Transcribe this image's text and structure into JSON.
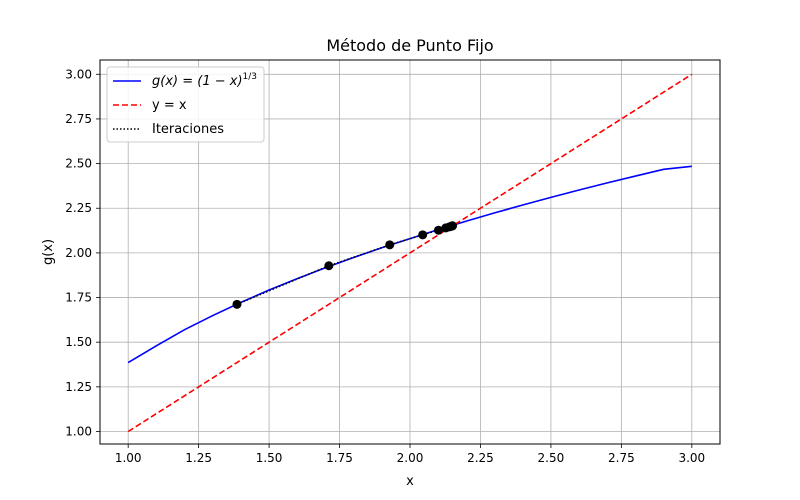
{
  "chart_data": {
    "type": "line",
    "title": "Método de Punto Fijo",
    "xlabel": "x",
    "ylabel": "g(x)",
    "xlim": [
      0.9,
      3.1
    ],
    "ylim": [
      0.93,
      3.08
    ],
    "x_ticks": [
      "1.00",
      "1.25",
      "1.50",
      "1.75",
      "2.00",
      "2.25",
      "2.50",
      "2.75",
      "3.00"
    ],
    "y_ticks": [
      "1.00",
      "1.25",
      "1.50",
      "1.75",
      "2.00",
      "2.25",
      "2.50",
      "2.75",
      "3.00"
    ],
    "grid": true,
    "legend_position": "top-left",
    "series": [
      {
        "name": "g(x) = (1 − x)^{1/3}",
        "legend_main": "g(x) = (1 − x)",
        "legend_sup": "1/3",
        "style": "solid",
        "color": "#0000ff",
        "x": [
          1.0,
          1.1,
          1.2,
          1.3,
          1.4,
          1.5,
          1.6,
          1.7,
          1.8,
          1.9,
          2.0,
          2.1,
          2.2,
          2.3,
          2.4,
          2.5,
          2.6,
          2.7,
          2.8,
          2.9,
          3.0
        ],
        "y": [
          1.386,
          1.48,
          1.57,
          1.649,
          1.723,
          1.792,
          1.856,
          1.917,
          1.974,
          2.029,
          2.08,
          2.13,
          2.178,
          2.224,
          2.268,
          2.311,
          2.352,
          2.392,
          2.43,
          2.468,
          2.485
        ]
      },
      {
        "name": "y = x",
        "legend_main": "y = x",
        "style": "dashed",
        "color": "#ff0000",
        "x": [
          1.0,
          3.0
        ],
        "y": [
          1.0,
          3.0
        ]
      },
      {
        "name": "Iteraciones",
        "legend_main": "Iteraciones",
        "style": "dotted",
        "color": "#000000",
        "x": [
          1.386,
          1.712,
          1.928,
          2.045,
          2.101,
          2.127,
          2.14,
          2.146,
          2.149,
          2.15,
          2.151
        ],
        "y": [
          1.712,
          1.928,
          2.045,
          2.101,
          2.127,
          2.14,
          2.146,
          2.149,
          2.15,
          2.151,
          2.152
        ]
      }
    ],
    "points": {
      "color": "#000000",
      "x": [
        1.386,
        1.712,
        1.928,
        2.045,
        2.101,
        2.127,
        2.14,
        2.146,
        2.149,
        2.15,
        2.151
      ],
      "y": [
        1.712,
        1.928,
        2.045,
        2.101,
        2.127,
        2.14,
        2.146,
        2.149,
        2.15,
        2.151,
        2.152
      ]
    }
  }
}
